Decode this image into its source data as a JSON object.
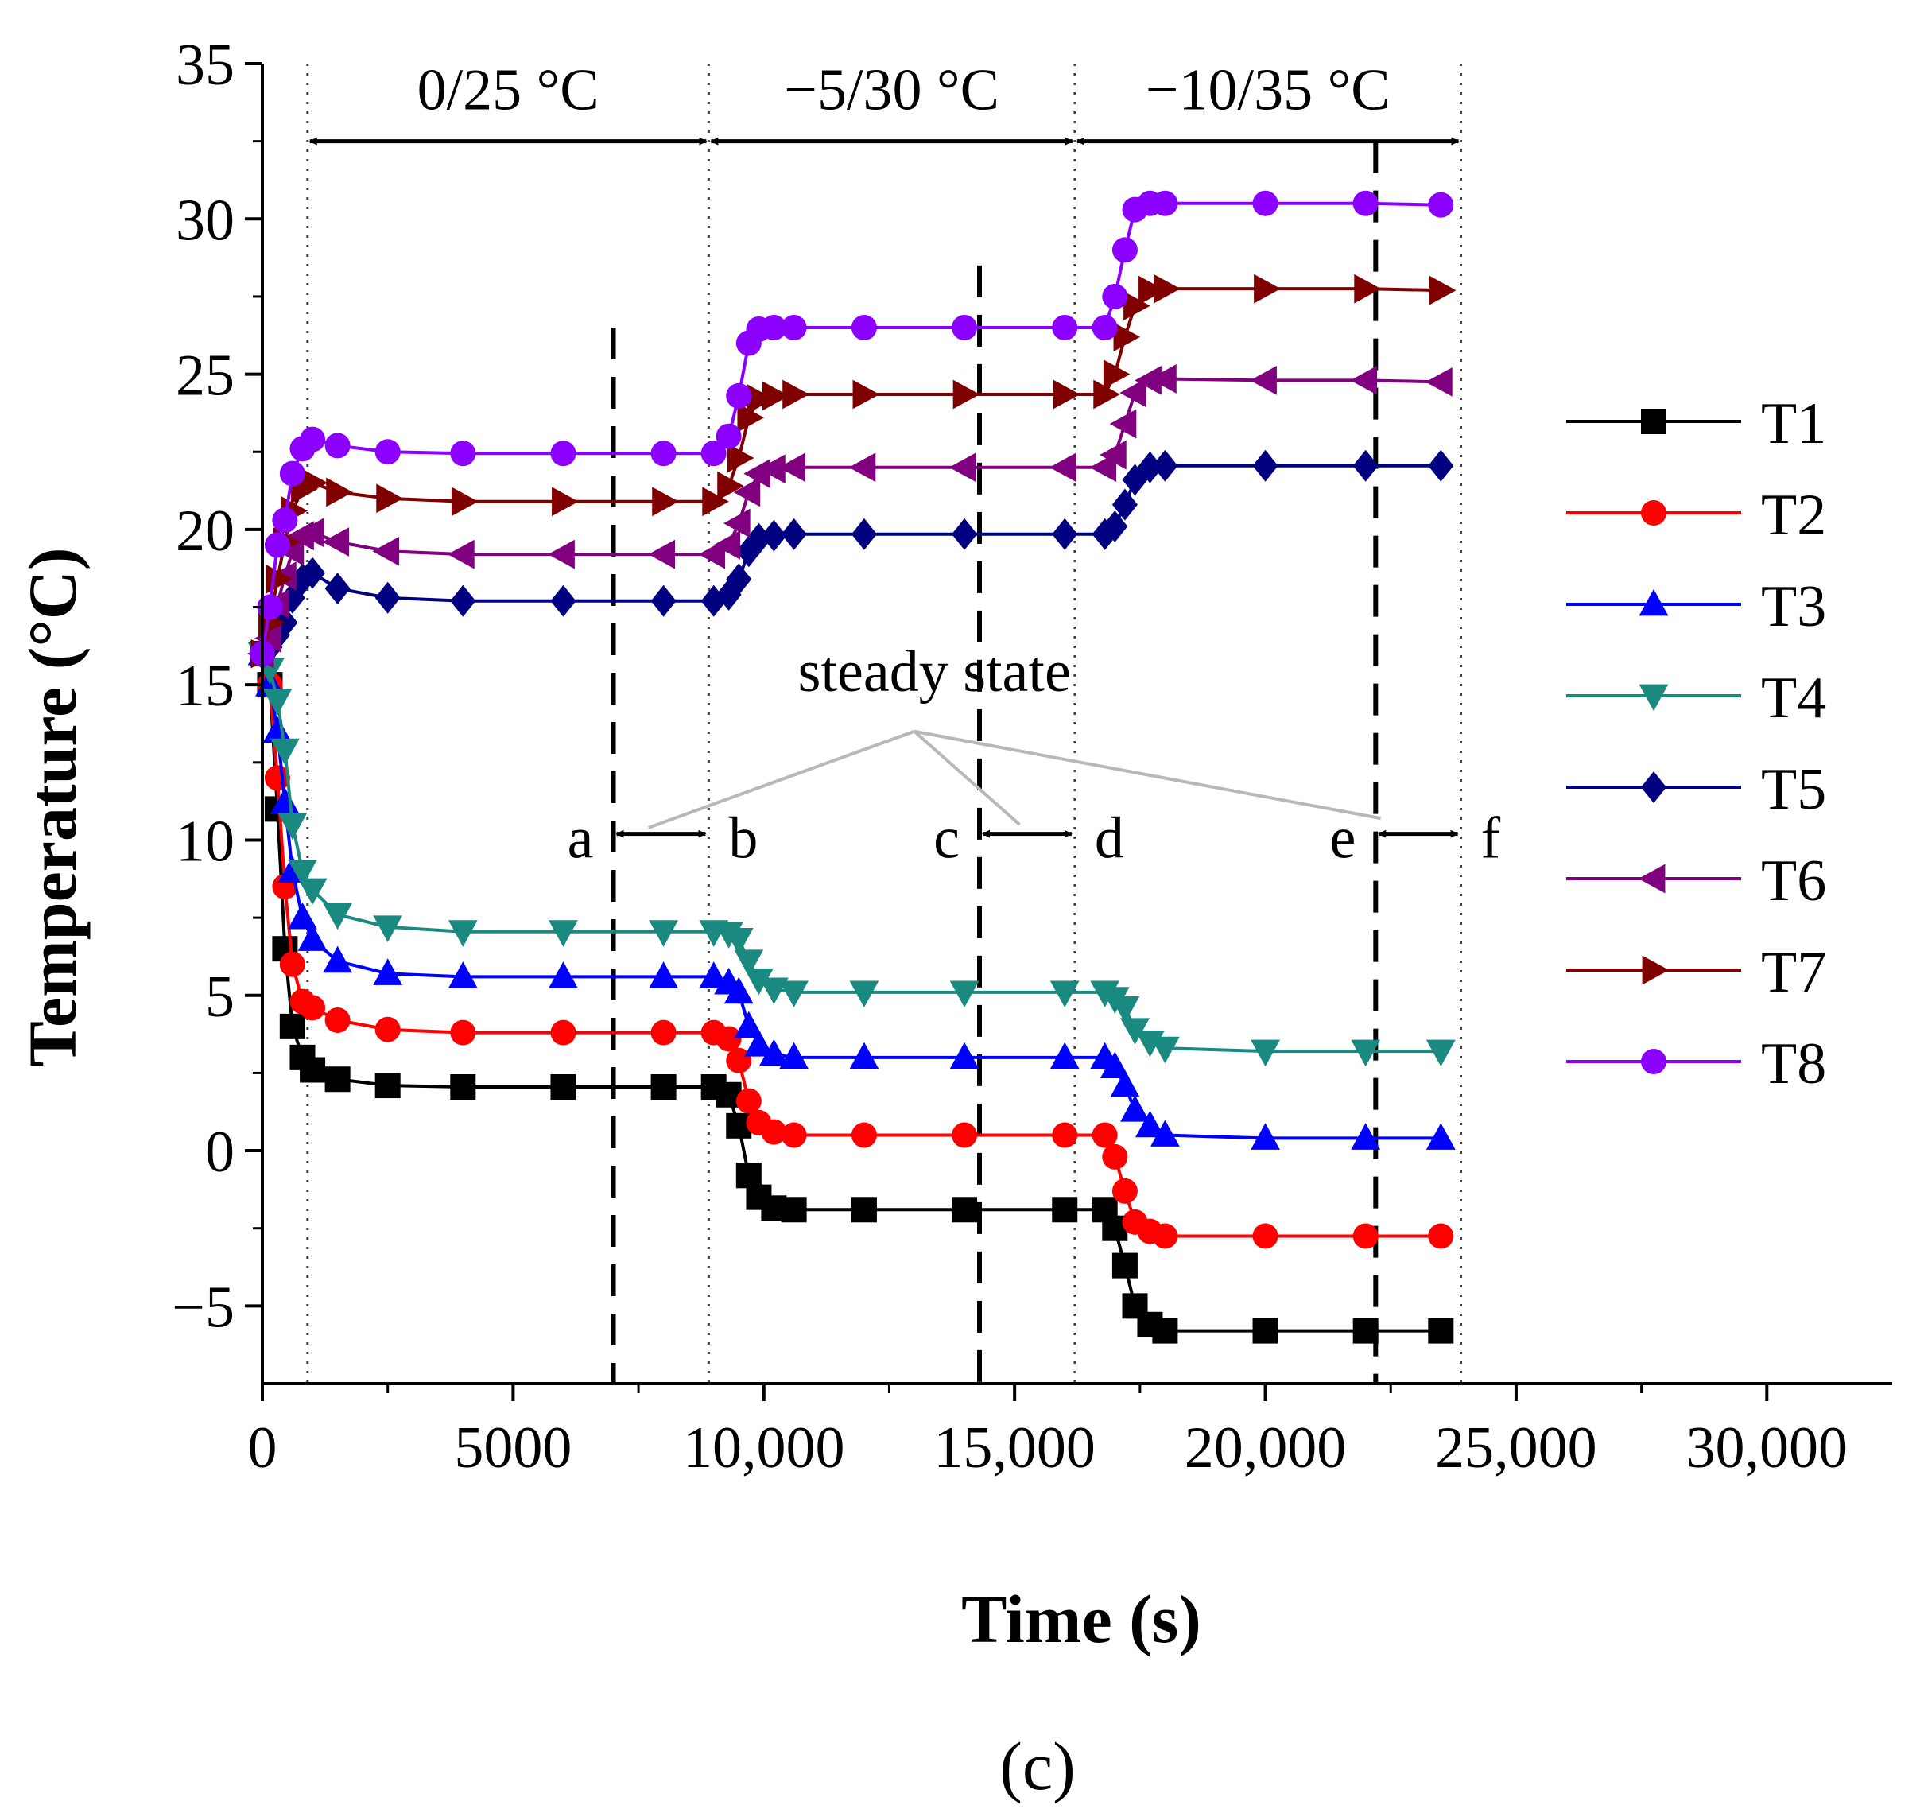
{
  "chart_data": {
    "type": "line",
    "panel_label": "(c)",
    "xlabel": "Time (s)",
    "ylabel": "Temperature (°C)",
    "xlim": [
      0,
      32500
    ],
    "ylim": [
      -7.5,
      35
    ],
    "x_ticks": [
      0,
      5000,
      10000,
      15000,
      20000,
      25000,
      30000
    ],
    "x_tick_labels": [
      "0",
      "5000",
      "10,000",
      "15,000",
      "20,000",
      "25,000",
      "30,000"
    ],
    "y_ticks": [
      -5,
      0,
      5,
      10,
      15,
      20,
      25,
      30,
      35
    ],
    "y_tick_labels": [
      "−5",
      "0",
      "5",
      "10",
      "15",
      "20",
      "25",
      "30",
      "35"
    ],
    "grid": false,
    "legend_position": "right",
    "phases": [
      {
        "label": "0/25 °C",
        "start": 900,
        "end": 8900
      },
      {
        "label": "−5/30 °C",
        "start": 8900,
        "end": 16200
      },
      {
        "label": "−10/35 °C",
        "start": 16200,
        "end": 23900
      }
    ],
    "steady_state": {
      "label": "steady state",
      "windows": [
        {
          "from_label": "a",
          "to_label": "b",
          "from": 7000,
          "to": 8900
        },
        {
          "from_label": "c",
          "to_label": "d",
          "from": 14300,
          "to": 16200
        },
        {
          "from_label": "e",
          "to_label": "f",
          "from": 22200,
          "to": 23900
        }
      ]
    },
    "series": [
      {
        "name": "T1",
        "color": "#000000",
        "marker": "square",
        "x": [
          0,
          150,
          300,
          450,
          600,
          800,
          1000,
          1500,
          2500,
          4000,
          6000,
          8000,
          9000,
          9300,
          9500,
          9700,
          9900,
          10200,
          10600,
          12000,
          14000,
          16000,
          16800,
          17000,
          17200,
          17400,
          17700,
          18000,
          20000,
          22000,
          23500
        ],
        "y": [
          16,
          15,
          11,
          6.5,
          4,
          3,
          2.6,
          2.3,
          2.1,
          2.05,
          2.05,
          2.05,
          2.05,
          1.8,
          0.8,
          -0.8,
          -1.5,
          -1.85,
          -1.9,
          -1.9,
          -1.9,
          -1.9,
          -1.9,
          -2.5,
          -3.7,
          -5,
          -5.6,
          -5.8,
          -5.8,
          -5.8,
          -5.8
        ]
      },
      {
        "name": "T2",
        "color": "#ff0000",
        "marker": "circle",
        "x": [
          0,
          150,
          300,
          450,
          600,
          800,
          1000,
          1500,
          2500,
          4000,
          6000,
          8000,
          9000,
          9300,
          9500,
          9700,
          9900,
          10200,
          10600,
          12000,
          14000,
          16000,
          16800,
          17000,
          17200,
          17400,
          17700,
          18000,
          20000,
          22000,
          23500
        ],
        "y": [
          16,
          15,
          12,
          8.5,
          6,
          4.8,
          4.6,
          4.2,
          3.9,
          3.8,
          3.8,
          3.8,
          3.8,
          3.6,
          2.9,
          1.6,
          0.9,
          0.6,
          0.5,
          0.5,
          0.5,
          0.5,
          0.5,
          -0.2,
          -1.3,
          -2.3,
          -2.6,
          -2.75,
          -2.75,
          -2.75,
          -2.75
        ]
      },
      {
        "name": "T3",
        "color": "#0000ff",
        "marker": "triangle-up",
        "x": [
          0,
          150,
          300,
          450,
          600,
          800,
          1000,
          1500,
          2500,
          4000,
          6000,
          8000,
          9000,
          9300,
          9500,
          9700,
          9900,
          10200,
          10600,
          12000,
          14000,
          16000,
          16800,
          17000,
          17200,
          17400,
          17700,
          18000,
          20000,
          22000,
          23500
        ],
        "y": [
          16,
          15,
          13.5,
          11.2,
          9,
          7.5,
          6.8,
          6.1,
          5.7,
          5.6,
          5.6,
          5.6,
          5.6,
          5.4,
          5.1,
          4,
          3.4,
          3.1,
          3.0,
          3.0,
          3.0,
          3.0,
          3.0,
          2.7,
          2.1,
          1.3,
          0.8,
          0.5,
          0.4,
          0.4,
          0.4
        ]
      },
      {
        "name": "T4",
        "color": "#1a8a80",
        "marker": "triangle-down",
        "x": [
          0,
          150,
          300,
          450,
          600,
          800,
          1000,
          1500,
          2500,
          4000,
          6000,
          8000,
          9000,
          9300,
          9500,
          9700,
          9900,
          10200,
          10600,
          12000,
          14000,
          16000,
          16800,
          17000,
          17200,
          17400,
          17700,
          18000,
          20000,
          22000,
          23500
        ],
        "y": [
          16,
          15.5,
          14.5,
          12.9,
          10.5,
          9,
          8.4,
          7.6,
          7.2,
          7.05,
          7.05,
          7.05,
          7.05,
          7.0,
          6.8,
          6.1,
          5.5,
          5.2,
          5.1,
          5.1,
          5.1,
          5.1,
          5.1,
          4.9,
          4.6,
          3.9,
          3.5,
          3.3,
          3.2,
          3.2,
          3.2
        ]
      },
      {
        "name": "T5",
        "color": "#000080",
        "marker": "diamond",
        "x": [
          0,
          150,
          300,
          450,
          600,
          800,
          1000,
          1500,
          2500,
          4000,
          6000,
          8000,
          9000,
          9300,
          9500,
          9700,
          9900,
          10200,
          10600,
          12000,
          14000,
          16000,
          16800,
          17000,
          17200,
          17400,
          17700,
          18000,
          20000,
          22000,
          23500
        ],
        "y": [
          16,
          16.2,
          16.6,
          17,
          17.8,
          18.4,
          18.6,
          18.1,
          17.8,
          17.7,
          17.7,
          17.7,
          17.7,
          17.9,
          18.4,
          19.3,
          19.7,
          19.8,
          19.85,
          19.85,
          19.85,
          19.85,
          19.85,
          20.1,
          20.8,
          21.6,
          22.0,
          22.05,
          22.05,
          22.05,
          22.05
        ]
      },
      {
        "name": "T6",
        "color": "#800080",
        "marker": "triangle-left",
        "x": [
          0,
          150,
          300,
          450,
          600,
          800,
          1000,
          1500,
          2500,
          4000,
          6000,
          8000,
          9000,
          9300,
          9500,
          9700,
          9900,
          10200,
          10600,
          12000,
          14000,
          16000,
          16800,
          17000,
          17200,
          17400,
          17700,
          18000,
          20000,
          22000,
          23500
        ],
        "y": [
          16,
          16.5,
          17.6,
          18.5,
          19.3,
          19.8,
          19.9,
          19.6,
          19.3,
          19.2,
          19.2,
          19.2,
          19.2,
          19.5,
          20.2,
          21.2,
          21.8,
          21.95,
          22.0,
          22.0,
          22.0,
          22.0,
          22.0,
          22.4,
          23.4,
          24.4,
          24.8,
          24.85,
          24.8,
          24.8,
          24.75
        ]
      },
      {
        "name": "T7",
        "color": "#800000",
        "marker": "triangle-right",
        "x": [
          0,
          150,
          300,
          450,
          600,
          800,
          1000,
          1500,
          2500,
          4000,
          6000,
          8000,
          9000,
          9300,
          9500,
          9700,
          9900,
          10200,
          10600,
          12000,
          14000,
          16000,
          16800,
          17000,
          17200,
          17400,
          17700,
          18000,
          20000,
          22000,
          23500
        ],
        "y": [
          16,
          17,
          18.4,
          19.6,
          20.6,
          21.3,
          21.5,
          21.2,
          21.0,
          20.9,
          20.9,
          20.9,
          20.9,
          21.4,
          22.3,
          23.6,
          24.2,
          24.3,
          24.35,
          24.35,
          24.35,
          24.35,
          24.35,
          25,
          26.2,
          27.2,
          27.7,
          27.75,
          27.75,
          27.75,
          27.7
        ]
      },
      {
        "name": "T8",
        "color": "#8b00ff",
        "marker": "circle",
        "x": [
          0,
          150,
          300,
          450,
          600,
          800,
          1000,
          1500,
          2500,
          4000,
          6000,
          8000,
          9000,
          9300,
          9500,
          9700,
          9900,
          10200,
          10600,
          12000,
          14000,
          16000,
          16800,
          17000,
          17200,
          17400,
          17700,
          18000,
          20000,
          22000,
          23500
        ],
        "y": [
          16,
          17.5,
          19.5,
          20.3,
          21.8,
          22.6,
          22.9,
          22.7,
          22.5,
          22.45,
          22.45,
          22.45,
          22.45,
          23.0,
          24.3,
          26.0,
          26.45,
          26.5,
          26.5,
          26.5,
          26.5,
          26.5,
          26.5,
          27.5,
          29.0,
          30.3,
          30.5,
          30.5,
          30.5,
          30.5,
          30.45
        ]
      }
    ]
  }
}
